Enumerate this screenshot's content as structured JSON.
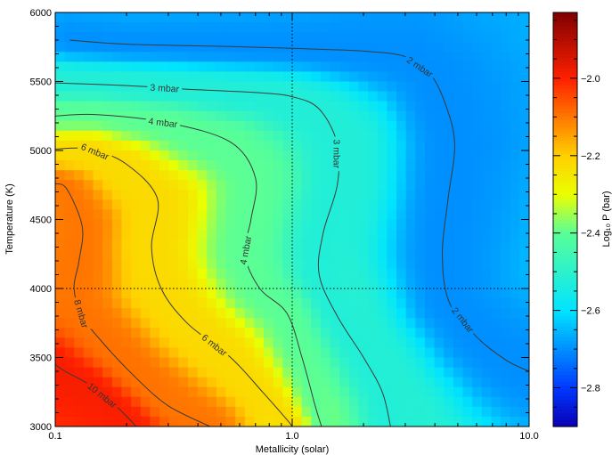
{
  "chart_data": {
    "type": "heatmap",
    "title": "",
    "xlabel": "Metallicity (solar)",
    "ylabel": "Temperature (K)",
    "x_scale": "log",
    "xlim": [
      0.1,
      10.0
    ],
    "ylim": [
      3000,
      6000
    ],
    "x_ticks": [
      {
        "value": 0.1,
        "label": "0.1"
      },
      {
        "value": 1.0,
        "label": "1.0"
      },
      {
        "value": 10.0,
        "label": "10.0"
      }
    ],
    "y_ticks": [
      {
        "value": 3000,
        "label": "3000"
      },
      {
        "value": 3500,
        "label": "3500"
      },
      {
        "value": 4000,
        "label": "4000"
      },
      {
        "value": 4500,
        "label": "4500"
      },
      {
        "value": 5000,
        "label": "5000"
      },
      {
        "value": 5500,
        "label": "5500"
      },
      {
        "value": 6000,
        "label": "6000"
      }
    ],
    "reference_lines": [
      {
        "axis": "x",
        "value": 1.0,
        "style": "dotted"
      },
      {
        "axis": "y",
        "value": 4000,
        "style": "dotted"
      }
    ],
    "colorbar": {
      "label": "Log₁₀ P (bar)",
      "range": [
        -2.9,
        -1.83
      ],
      "colormap": "rainbow",
      "stops": [
        {
          "value": -2.9,
          "color": "#0a00b4"
        },
        {
          "value": -2.8,
          "color": "#0038ff"
        },
        {
          "value": -2.6,
          "color": "#00e4ff"
        },
        {
          "value": -2.4,
          "color": "#58ff98"
        },
        {
          "value": -2.3,
          "color": "#eaff00"
        },
        {
          "value": -2.2,
          "color": "#ffd000"
        },
        {
          "value": -2.0,
          "color": "#ff2000"
        },
        {
          "value": -1.83,
          "color": "#800000"
        }
      ],
      "ticks": [
        {
          "value": -2.8,
          "label": "−2.8"
        },
        {
          "value": -2.6,
          "label": "−2.6"
        },
        {
          "value": -2.4,
          "label": "−2.4"
        },
        {
          "value": -2.2,
          "label": "−2.2"
        },
        {
          "value": -2.0,
          "label": "−2.0"
        }
      ]
    },
    "contours": [
      {
        "label": "2 mbar",
        "points": [
          [
            0.115,
            5800
          ],
          [
            0.2,
            5770
          ],
          [
            0.5,
            5755
          ],
          [
            1.0,
            5740
          ],
          [
            2.0,
            5720
          ],
          [
            3.0,
            5680
          ],
          [
            3.8,
            5560
          ],
          [
            4.4,
            5350
          ],
          [
            4.85,
            5050
          ],
          [
            4.55,
            4650
          ],
          [
            4.3,
            4250
          ],
          [
            4.6,
            3900
          ],
          [
            6.0,
            3650
          ],
          [
            8.0,
            3480
          ],
          [
            10.0,
            3400
          ]
        ]
      },
      {
        "label": "3 mbar",
        "points": [
          [
            0.1,
            5490
          ],
          [
            0.2,
            5470
          ],
          [
            0.4,
            5440
          ],
          [
            0.7,
            5420
          ],
          [
            1.0,
            5390
          ],
          [
            1.3,
            5300
          ],
          [
            1.55,
            5050
          ],
          [
            1.55,
            4750
          ],
          [
            1.35,
            4400
          ],
          [
            1.3,
            4100
          ],
          [
            1.55,
            3800
          ],
          [
            2.0,
            3500
          ],
          [
            2.4,
            3250
          ],
          [
            2.6,
            3000
          ]
        ]
      },
      {
        "label": "4 mbar",
        "points": [
          [
            0.1,
            5250
          ],
          [
            0.15,
            5260
          ],
          [
            0.3,
            5200
          ],
          [
            0.55,
            5060
          ],
          [
            0.7,
            4800
          ],
          [
            0.67,
            4500
          ],
          [
            0.63,
            4250
          ],
          [
            0.73,
            4000
          ],
          [
            0.95,
            3820
          ],
          [
            1.1,
            3500
          ],
          [
            1.25,
            3150
          ],
          [
            1.33,
            3000
          ]
        ]
      },
      {
        "label": "6 mbar",
        "points": [
          [
            0.1,
            5010
          ],
          [
            0.14,
            5010
          ],
          [
            0.2,
            4900
          ],
          [
            0.27,
            4650
          ],
          [
            0.255,
            4300
          ],
          [
            0.28,
            4000
          ],
          [
            0.36,
            3750
          ],
          [
            0.55,
            3500
          ],
          [
            0.75,
            3250
          ],
          [
            0.95,
            3050
          ],
          [
            1.0,
            3000
          ]
        ]
      },
      {
        "label": "8 mbar",
        "points": [
          [
            0.1,
            4760
          ],
          [
            0.112,
            4720
          ],
          [
            0.13,
            4450
          ],
          [
            0.126,
            4200
          ],
          [
            0.12,
            4000
          ],
          [
            0.13,
            3800
          ],
          [
            0.16,
            3600
          ],
          [
            0.22,
            3350
          ],
          [
            0.3,
            3150
          ],
          [
            0.45,
            3000
          ]
        ]
      },
      {
        "label": "10 mbar",
        "points": [
          [
            0.1,
            3450
          ],
          [
            0.11,
            3400
          ],
          [
            0.14,
            3300
          ],
          [
            0.18,
            3150
          ],
          [
            0.22,
            3000
          ]
        ]
      }
    ]
  }
}
